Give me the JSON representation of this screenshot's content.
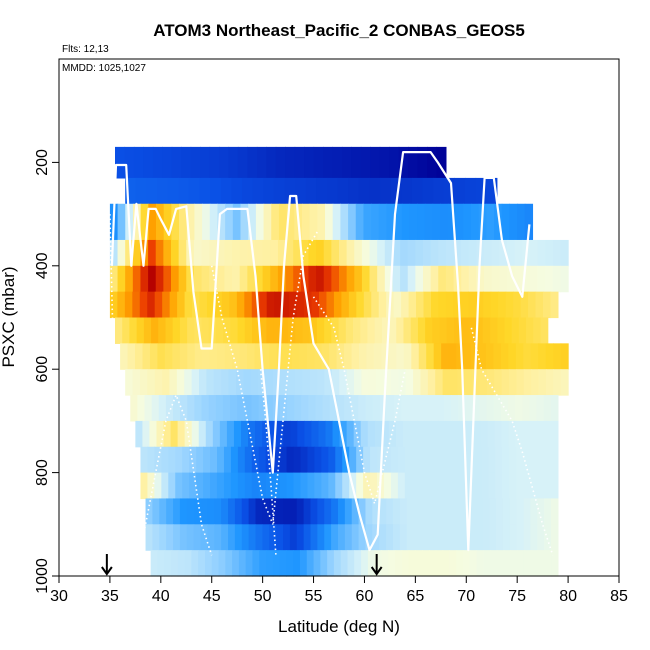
{
  "chart_data": {
    "type": "heatmap",
    "title": "ATOM3 Northeast_Pacific_2 CONBAS_GEOS5",
    "annotations": {
      "flights": "Flts: 12,13",
      "dates": "MMDD: 1025,1027"
    },
    "xlabel": "Latitude (deg N)",
    "ylabel": "PSXC (mbar)",
    "xlim": [
      30,
      85
    ],
    "ylim": [
      1000,
      0
    ],
    "x_ticks": [
      30,
      35,
      40,
      45,
      50,
      55,
      60,
      65,
      70,
      75,
      80,
      85
    ],
    "y_ticks": [
      200,
      400,
      600,
      800,
      1000
    ],
    "grid": false,
    "colormap": "blue-white-yellow-red diverging",
    "markers": [
      {
        "x": 34.7,
        "type": "down-arrow"
      },
      {
        "x": 61.2,
        "type": "down-arrow"
      }
    ],
    "bands": [
      {
        "p": [
          170,
          230
        ],
        "x": [
          35.5,
          68.0
        ],
        "v": [
          -2.2,
          -2.3,
          -2.4,
          -2.6,
          -2.7,
          -2.8,
          -3.0
        ]
      },
      {
        "p": [
          230,
          280
        ],
        "x": [
          36.5,
          73.0
        ],
        "v": [
          -2.0,
          -2.1,
          -2.3,
          -2.4,
          -2.5,
          -2.4,
          -2.3
        ]
      },
      {
        "p": [
          280,
          350
        ],
        "x": [
          35.0,
          76.5
        ],
        "v": [
          -1.8,
          1.8,
          0.4,
          -0.8,
          0.9,
          0.5,
          -1.2,
          -1.4,
          -1.5,
          -1.3,
          -1.6
        ]
      },
      {
        "p": [
          350,
          400
        ],
        "x": [
          35.0,
          80.0
        ],
        "v": [
          -0.6,
          2.4,
          0.3,
          0.5,
          0.6,
          1.3,
          0.3,
          -0.5,
          -0.3,
          -0.2,
          -0.1,
          -0.2
        ]
      },
      {
        "p": [
          400,
          450
        ],
        "x": [
          35.0,
          80.0
        ],
        "v": [
          0.6,
          3.0,
          0.9,
          0.5,
          1.6,
          2.8,
          1.4,
          -0.4,
          0.8,
          0.3,
          0.2,
          0.1
        ]
      },
      {
        "p": [
          450,
          500
        ],
        "x": [
          35.0,
          79.0
        ],
        "v": [
          1.2,
          2.6,
          1.0,
          1.4,
          2.8,
          2.5,
          1.3,
          0.3,
          1.2,
          1.3,
          1.1,
          0.7
        ]
      },
      {
        "p": [
          500,
          550
        ],
        "x": [
          35.5,
          78.0
        ],
        "v": [
          0.7,
          1.6,
          0.9,
          1.1,
          1.6,
          1.4,
          0.8,
          0.4,
          1.3,
          1.5,
          1.2,
          0.9
        ]
      },
      {
        "p": [
          550,
          600
        ],
        "x": [
          36.0,
          80.0
        ],
        "v": [
          0.4,
          1.0,
          0.7,
          0.8,
          1.0,
          0.9,
          0.5,
          0.3,
          1.6,
          1.4,
          1.1,
          1.3
        ]
      },
      {
        "p": [
          600,
          650
        ],
        "x": [
          36.5,
          80.0
        ],
        "v": [
          0.2,
          0.5,
          -0.3,
          -0.5,
          -0.4,
          -0.3,
          0.2,
          0.1,
          0.9,
          0.8,
          0.6,
          0.4
        ]
      },
      {
        "p": [
          650,
          700
        ],
        "x": [
          37.0,
          79.0
        ],
        "v": [
          0.3,
          -0.2,
          -0.6,
          -0.8,
          -0.6,
          -0.4,
          -0.2,
          -0.1,
          -0.1,
          0.0,
          0.1,
          0.0
        ]
      },
      {
        "p": [
          700,
          750
        ],
        "x": [
          37.5,
          79.0
        ],
        "v": [
          -0.4,
          0.9,
          -0.6,
          -1.8,
          -2.4,
          -1.8,
          -0.4,
          -0.2,
          -0.2,
          -0.2,
          -0.1,
          -0.1
        ]
      },
      {
        "p": [
          750,
          800
        ],
        "x": [
          38.0,
          79.0
        ],
        "v": [
          -0.3,
          -0.5,
          -0.9,
          -2.0,
          -2.6,
          -2.1,
          -0.3,
          -0.2,
          -0.2,
          -0.2,
          -0.1,
          -0.1
        ]
      },
      {
        "p": [
          800,
          850
        ],
        "x": [
          38.0,
          79.0
        ],
        "v": [
          0.7,
          -0.8,
          -1.2,
          -1.6,
          -1.4,
          -1.0,
          0.5,
          -0.2,
          -0.2,
          -0.2,
          -0.1,
          -0.1
        ]
      },
      {
        "p": [
          850,
          900
        ],
        "x": [
          38.5,
          79.0
        ],
        "v": [
          -0.6,
          -1.4,
          -1.5,
          -2.6,
          -2.7,
          -1.8,
          -0.4,
          -0.2,
          -0.2,
          -0.2,
          -0.1,
          0.1
        ]
      },
      {
        "p": [
          900,
          950
        ],
        "x": [
          38.5,
          79.0
        ],
        "v": [
          -0.3,
          -0.8,
          -1.0,
          -1.8,
          -2.4,
          -1.2,
          -0.5,
          -0.2,
          -0.2,
          -0.2,
          -0.1,
          0.1
        ]
      },
      {
        "p": [
          950,
          1000
        ],
        "x": [
          39.0,
          79.0
        ],
        "v": [
          -0.2,
          -0.3,
          -0.7,
          -1.3,
          -1.4,
          -0.5,
          0.1,
          0.2,
          0.2,
          0.1,
          0.1,
          0.1
        ]
      }
    ],
    "white_tracks": [
      [
        [
          35.2,
          400
        ],
        [
          35.6,
          205
        ],
        [
          36.6,
          205
        ],
        [
          37.1,
          400
        ],
        [
          37.6,
          280
        ],
        [
          38.3,
          400
        ],
        [
          38.8,
          290
        ],
        [
          39.5,
          290
        ],
        [
          40.0,
          310
        ],
        [
          40.8,
          340
        ],
        [
          41.5,
          290
        ],
        [
          42.5,
          285
        ],
        [
          43.2,
          450
        ],
        [
          44.0,
          560
        ],
        [
          45.0,
          560
        ],
        [
          45.8,
          300
        ],
        [
          46.5,
          290
        ],
        [
          48.5,
          290
        ],
        [
          49.3,
          420
        ],
        [
          50.0,
          600
        ],
        [
          51.0,
          800
        ],
        [
          51.6,
          600
        ],
        [
          52.1,
          400
        ],
        [
          52.7,
          265
        ],
        [
          53.3,
          265
        ],
        [
          54.0,
          420
        ],
        [
          55.0,
          550
        ],
        [
          56.5,
          600
        ],
        [
          57.5,
          700
        ],
        [
          58.5,
          800
        ],
        [
          59.5,
          880
        ],
        [
          60.5,
          950
        ],
        [
          61.3,
          920
        ],
        [
          62.0,
          650
        ],
        [
          63.0,
          300
        ],
        [
          63.8,
          180
        ],
        [
          66.5,
          180
        ],
        [
          67.2,
          200
        ],
        [
          68.5,
          240
        ],
        [
          69.2,
          440
        ],
        [
          69.6,
          600
        ],
        [
          70.2,
          950
        ],
        [
          70.8,
          650
        ],
        [
          71.3,
          400
        ],
        [
          71.8,
          230
        ],
        [
          72.7,
          230
        ],
        [
          73.5,
          350
        ],
        [
          74.5,
          420
        ],
        [
          75.5,
          460
        ],
        [
          76.2,
          320
        ]
      ]
    ],
    "dotted_tracks": [
      [
        [
          35.0,
          300
        ],
        [
          35.5,
          700
        ],
        [
          36.2,
          900
        ],
        [
          38.0,
          950
        ],
        [
          39.5,
          800
        ],
        [
          40.5,
          700
        ],
        [
          41.5,
          650
        ],
        [
          42.5,
          700
        ],
        [
          44.0,
          900
        ],
        [
          45.0,
          960
        ]
      ],
      [
        [
          45.0,
          400
        ],
        [
          46.0,
          500
        ],
        [
          47.5,
          600
        ],
        [
          48.5,
          700
        ],
        [
          50.0,
          850
        ],
        [
          51.0,
          900
        ],
        [
          52.0,
          700
        ],
        [
          53.0,
          500
        ],
        [
          54.0,
          380
        ],
        [
          55.5,
          330
        ]
      ],
      [
        [
          55.0,
          460
        ],
        [
          57.0,
          520
        ],
        [
          58.0,
          600
        ],
        [
          59.0,
          700
        ],
        [
          60.0,
          800
        ],
        [
          61.0,
          860
        ],
        [
          62.0,
          780
        ],
        [
          63.0,
          700
        ],
        [
          64.0,
          600
        ]
      ],
      [
        [
          70.5,
          520
        ],
        [
          71.5,
          600
        ],
        [
          73.0,
          650
        ],
        [
          74.5,
          700
        ],
        [
          75.5,
          760
        ],
        [
          76.5,
          830
        ],
        [
          77.5,
          900
        ],
        [
          78.5,
          960
        ]
      ],
      [
        [
          49.8,
          600
        ],
        [
          50.3,
          700
        ],
        [
          50.8,
          820
        ],
        [
          51.3,
          960
        ]
      ]
    ]
  }
}
